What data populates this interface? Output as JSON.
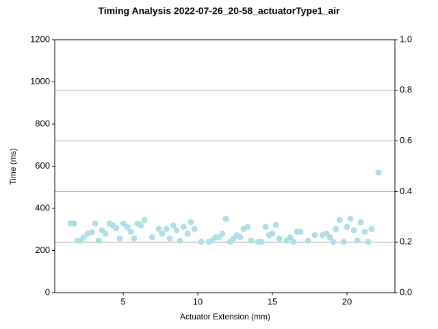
{
  "chart_data": {
    "type": "scatter",
    "title": "Timing Analysis 2022-07-26_20-58_actuatorType1_air",
    "xlabel": "Actuator Extension (mm)",
    "ylabel": "Time (ms)",
    "x": [
      1.47,
      1.7,
      1.93,
      2.16,
      2.34,
      2.61,
      2.89,
      3.12,
      3.35,
      3.58,
      3.81,
      4.08,
      4.31,
      4.54,
      4.77,
      5.0,
      5.28,
      5.5,
      5.73,
      5.96,
      6.19,
      6.42,
      6.93,
      7.39,
      7.61,
      7.89,
      8.12,
      8.35,
      8.58,
      8.81,
      9.04,
      9.31,
      9.54,
      9.77,
      10.23,
      10.73,
      10.96,
      11.19,
      11.42,
      11.65,
      11.88,
      12.16,
      12.39,
      12.61,
      12.84,
      13.07,
      13.35,
      13.58,
      14.04,
      14.27,
      14.54,
      14.77,
      15.0,
      15.23,
      15.46,
      15.96,
      16.19,
      16.42,
      16.65,
      16.88,
      17.39,
      17.84,
      18.35,
      18.62,
      18.85,
      19.08,
      19.27,
      19.5,
      19.77,
      20.0,
      20.23,
      20.46,
      20.69,
      20.92,
      21.19,
      21.42,
      21.65,
      22.11
    ],
    "values": [
      328,
      328,
      247,
      247,
      263,
      280,
      286,
      328,
      247,
      296,
      280,
      328,
      319,
      306,
      257,
      328,
      312,
      289,
      257,
      328,
      319,
      345,
      263,
      302,
      280,
      302,
      257,
      319,
      296,
      247,
      312,
      280,
      335,
      302,
      241,
      241,
      247,
      263,
      263,
      280,
      351,
      241,
      257,
      273,
      263,
      302,
      312,
      247,
      241,
      241,
      312,
      273,
      280,
      322,
      257,
      247,
      263,
      241,
      289,
      289,
      247,
      273,
      273,
      280,
      263,
      241,
      302,
      345,
      241,
      312,
      351,
      296,
      247,
      335,
      289,
      241,
      302,
      570
    ],
    "color": "#b0e0e6",
    "xlim": [
      0.41,
      23.21
    ],
    "xticks": [
      5,
      10,
      15,
      20
    ],
    "ylim": [
      0,
      1200
    ],
    "yticks": [
      0,
      200,
      400,
      600,
      800,
      1000,
      1200
    ],
    "y2lim": [
      0,
      1
    ],
    "y2ticks": [
      {
        "value": 0,
        "label": "0.0"
      },
      {
        "value": 0.2,
        "label": "0.2"
      },
      {
        "value": 0.4,
        "label": "0.4"
      },
      {
        "value": 0.6,
        "label": "0.6"
      },
      {
        "value": 0.8,
        "label": "0.8"
      },
      {
        "value": 1,
        "label": "1.0"
      }
    ],
    "grid_axis": "y2"
  }
}
